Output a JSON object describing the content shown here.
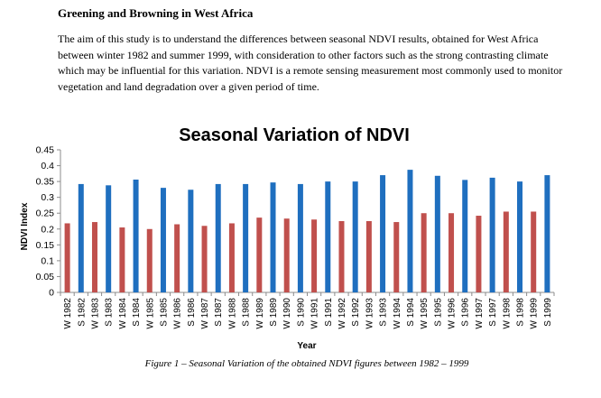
{
  "heading": "Greening and Browning in West Africa",
  "intro": "The aim of this study is to understand the differences between seasonal NDVI results, obtained for West Africa between winter 1982 and summer 1999, with consideration to other factors such as the strong contrasting climate which may be influential for this variation. NDVI  is  a remote sensing measurement most commonly used to monitor vegetation and land degradation  over a given period of time.",
  "caption": "Figure 1 – Seasonal Variation of the obtained NDVI figures between 1982 – 1999",
  "colors": {
    "winter": "#c0504d",
    "summer": "#1f6fbf"
  },
  "chart_data": {
    "type": "bar",
    "title": "Seasonal Variation of NDVI",
    "xlabel": "Year",
    "ylabel": "NDVI Index",
    "ylim": [
      0,
      0.45
    ],
    "yticks": [
      "0",
      "0.05",
      "0.1",
      "0.15",
      "0.2",
      "0.25",
      "0.3",
      "0.35",
      "0.4",
      "0.45"
    ],
    "grid": false,
    "categories": [
      "W 1982",
      "S 1982",
      "W 1983",
      "S 1983",
      "W 1984",
      "S 1984",
      "W 1985",
      "S 1985",
      "W 1986",
      "S 1986",
      "W 1987",
      "S 1987",
      "W 1988",
      "S 1988",
      "W 1989",
      "S 1989",
      "W 1990",
      "S 1990",
      "W 1991",
      "S 1991",
      "W 1992",
      "S 1992",
      "W 1993",
      "S 1993",
      "W 1994",
      "S 1994",
      "W 1995",
      "S 1995",
      "W 1996",
      "S 1996",
      "W 1997",
      "S 1997",
      "W 1998",
      "S 1998",
      "W 1999",
      "S 1999"
    ],
    "values": [
      0.218,
      0.342,
      0.222,
      0.338,
      0.205,
      0.356,
      0.2,
      0.33,
      0.215,
      0.324,
      0.21,
      0.342,
      0.218,
      0.342,
      0.236,
      0.347,
      0.233,
      0.342,
      0.23,
      0.35,
      0.225,
      0.35,
      0.225,
      0.37,
      0.222,
      0.387,
      0.25,
      0.368,
      0.25,
      0.355,
      0.242,
      0.362,
      0.255,
      0.35,
      0.255,
      0.37
    ]
  }
}
